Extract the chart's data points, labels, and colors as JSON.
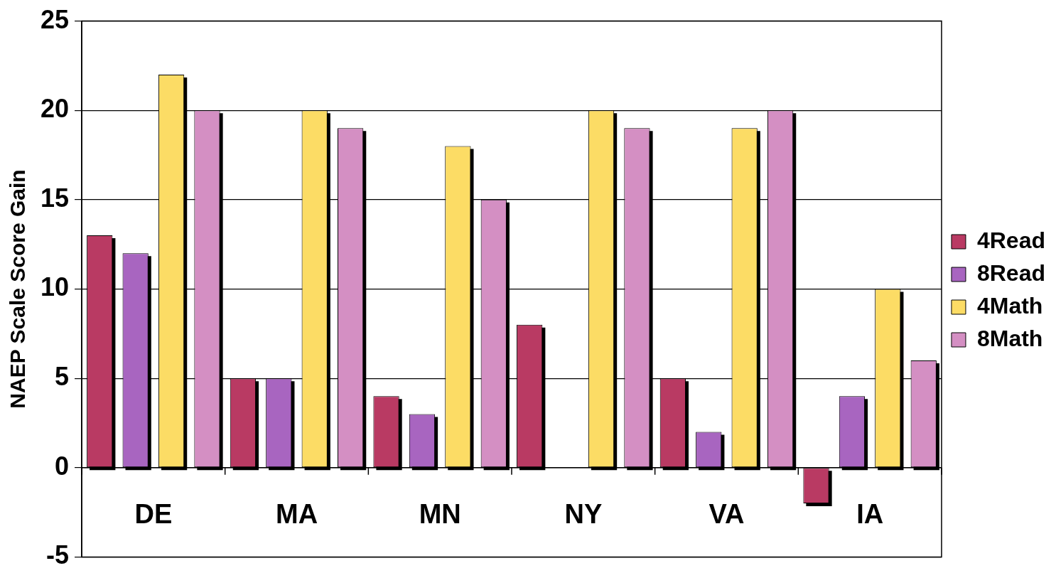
{
  "chart_data": {
    "type": "bar",
    "ylabel": "NAEP Scale Score Gain",
    "categories": [
      "DE",
      "MA",
      "MN",
      "NY",
      "VA",
      "IA"
    ],
    "series": [
      {
        "name": "4Read",
        "color": "#b93a63",
        "values": [
          13,
          5,
          4,
          8,
          5,
          -2
        ]
      },
      {
        "name": "8Read",
        "color": "#a865c0",
        "values": [
          12,
          5,
          3,
          0,
          2,
          4
        ]
      },
      {
        "name": "4Math",
        "color": "#fcdc65",
        "values": [
          22,
          20,
          18,
          20,
          19,
          10
        ]
      },
      {
        "name": "8Math",
        "color": "#d48fc3",
        "values": [
          20,
          19,
          15,
          19,
          20,
          6
        ]
      }
    ],
    "ylim": [
      -5,
      25
    ],
    "yticks": [
      -5,
      0,
      5,
      10,
      15,
      20,
      25
    ],
    "grid": "y",
    "legend": "right"
  }
}
